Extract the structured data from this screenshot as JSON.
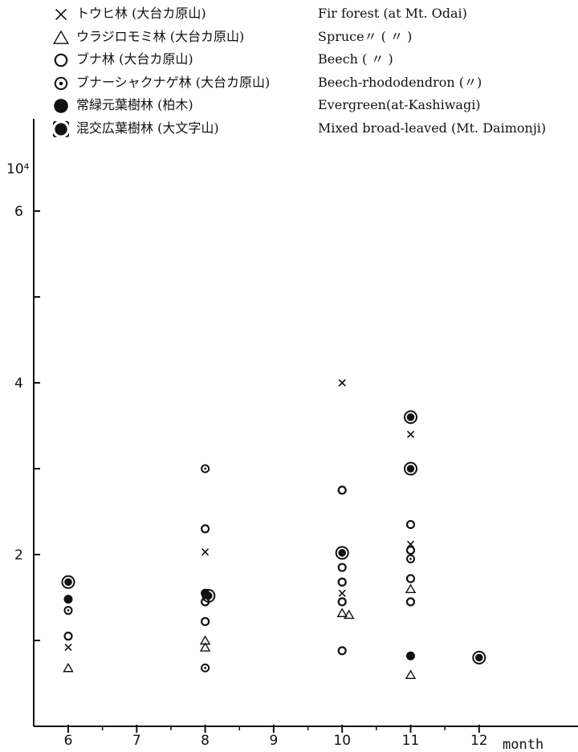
{
  "chart_data": {
    "type": "scatter",
    "title": "",
    "xlabel": "month",
    "ylabel": "10⁴",
    "x_ticks": [
      "6",
      "7",
      "8",
      "9",
      "10",
      "11",
      "12"
    ],
    "y_ticks": [
      "2",
      "4",
      "6"
    ],
    "xlim": [
      5.0,
      12.5
    ],
    "ylim": [
      0,
      7
    ],
    "grid": false,
    "legend_position": "top",
    "series": [
      {
        "name_jp": "トウヒ林 (大台カ原山)",
        "name": "Fir forest (at Mt. Odai)",
        "marker": "cross",
        "points": [
          [
            6,
            0.92
          ],
          [
            8,
            2.03
          ],
          [
            10,
            4.0
          ],
          [
            10,
            1.55
          ],
          [
            11,
            3.4
          ],
          [
            11,
            2.12
          ]
        ]
      },
      {
        "name_jp": "ウラジロモミ林 (大台カ原山)",
        "name": "Spruce〃 ( 〃 )",
        "marker": "triangle",
        "points": [
          [
            6,
            0.68
          ],
          [
            8,
            1.0
          ],
          [
            8,
            0.92
          ],
          [
            10,
            1.32
          ],
          [
            10.1,
            1.3
          ],
          [
            11,
            1.6
          ],
          [
            11,
            0.6
          ]
        ]
      },
      {
        "name_jp": "ブナ林 (大台カ原山)",
        "name": "Beech ( 〃 )",
        "marker": "circle",
        "points": [
          [
            6,
            1.05
          ],
          [
            8,
            2.3
          ],
          [
            8,
            1.45
          ],
          [
            8,
            1.22
          ],
          [
            10,
            2.75
          ],
          [
            10,
            1.85
          ],
          [
            10,
            1.68
          ],
          [
            10,
            1.45
          ],
          [
            10,
            0.88
          ],
          [
            11,
            2.35
          ],
          [
            11,
            2.05
          ],
          [
            11,
            1.72
          ],
          [
            11,
            1.45
          ]
        ]
      },
      {
        "name_jp": "ブナーシャクナゲ林 (大台カ原山)",
        "name": "Beech-rhododendron (〃)",
        "marker": "dot-circle",
        "points": [
          [
            6,
            1.35
          ],
          [
            8,
            3.0
          ],
          [
            8,
            0.68
          ],
          [
            11,
            1.95
          ]
        ]
      },
      {
        "name_jp": "常緑元葉樹林 (柏木)",
        "name": "Evergreen(at-Kashiwagi)",
        "marker": "filled",
        "points": [
          [
            6,
            1.48
          ],
          [
            8,
            1.55
          ],
          [
            11,
            0.82
          ]
        ]
      },
      {
        "name_jp": "混交広葉樹林 (大文字山)",
        "name": "Mixed broad-leaved (Mt. Daimonji)",
        "marker": "ringed",
        "points": [
          [
            6,
            1.68
          ],
          [
            8.05,
            1.52
          ],
          [
            10,
            2.02
          ],
          [
            11,
            3.6
          ],
          [
            11,
            3.0
          ],
          [
            12,
            0.8
          ]
        ]
      }
    ]
  }
}
